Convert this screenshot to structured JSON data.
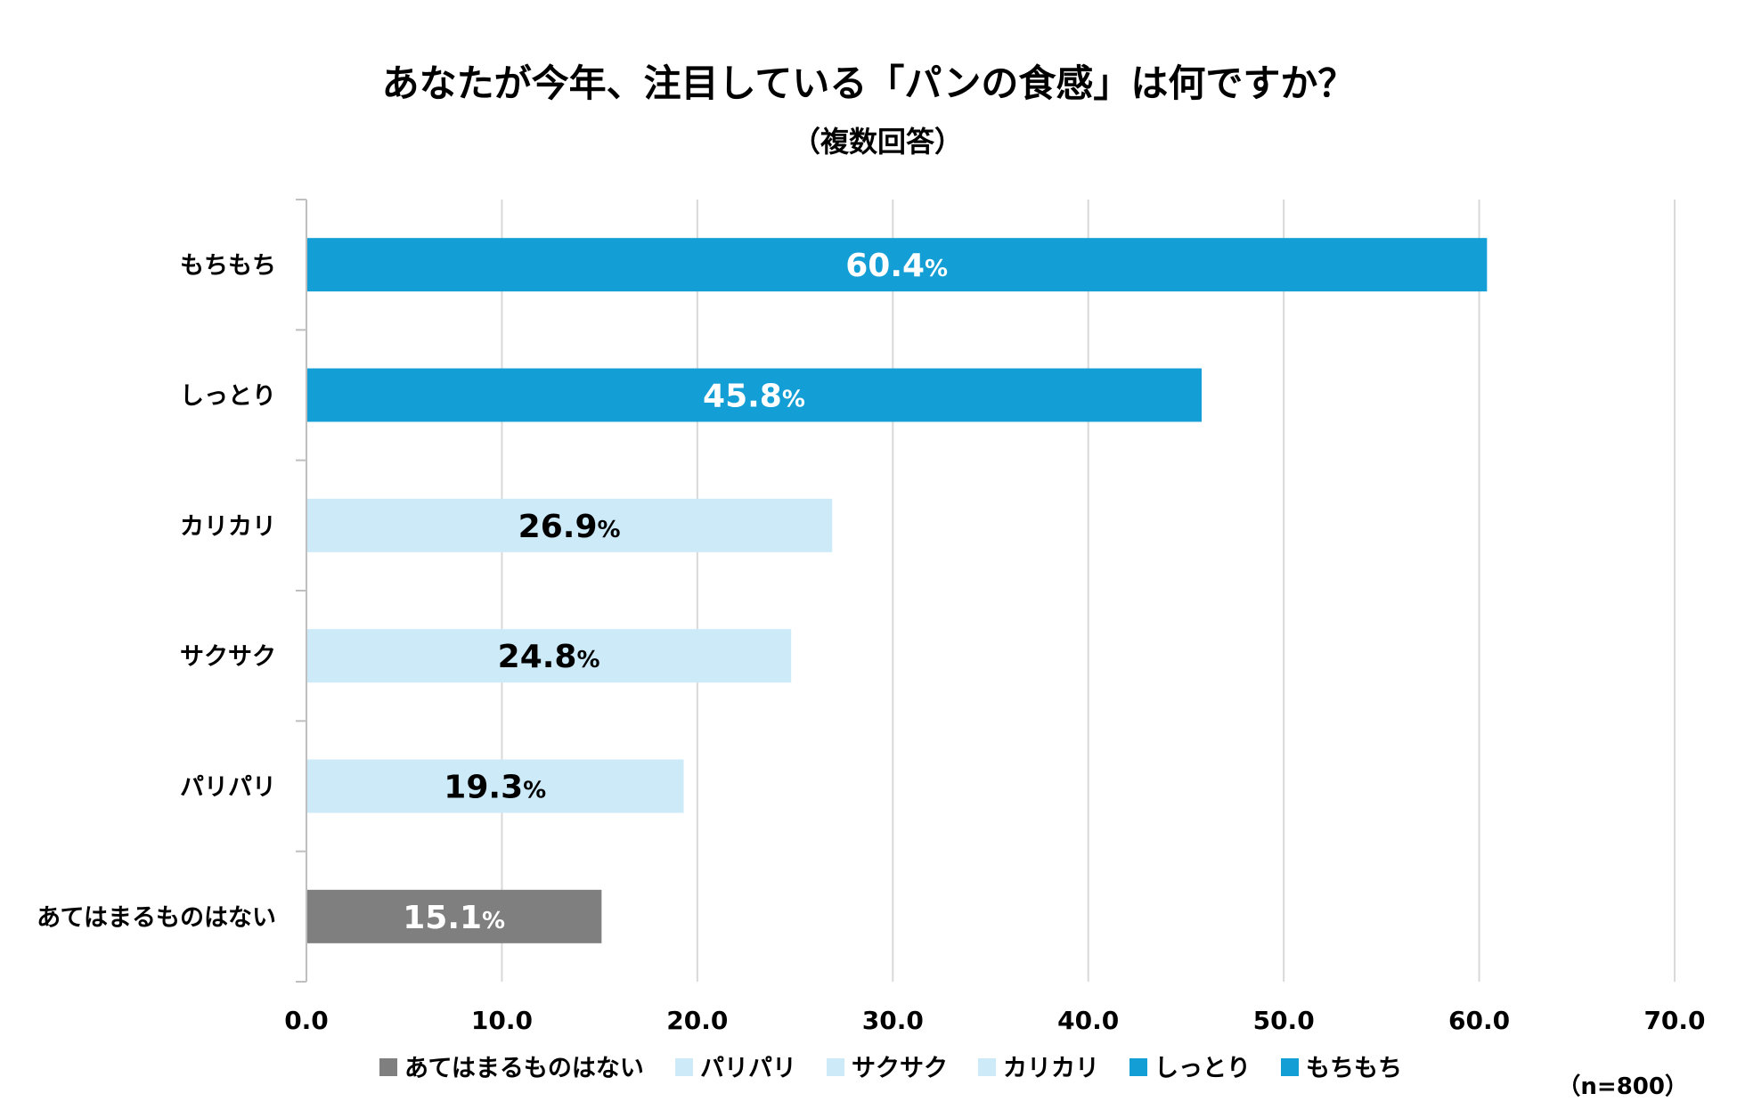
{
  "chart_data": {
    "type": "bar",
    "orientation": "horizontal",
    "title": "あなたが今年、注目している「パンの食感」は何ですか？",
    "subtitle": "（複数回答）",
    "categories": [
      "もちもち",
      "しっとり",
      "カリカリ",
      "サクサク",
      "パリパリ",
      "あてはまるものはない"
    ],
    "values": [
      60.4,
      45.8,
      26.9,
      24.8,
      19.3,
      15.1
    ],
    "value_labels": [
      "60.4",
      "45.8",
      "26.9",
      "24.8",
      "19.3",
      "15.1"
    ],
    "value_suffix": "%",
    "bar_colors": [
      "#139ed5",
      "#139ed5",
      "#cdeaf9",
      "#cdeaf9",
      "#cdeaf9",
      "#7f7f7f"
    ],
    "label_colors": [
      "#ffffff",
      "#ffffff",
      "#000000",
      "#000000",
      "#000000",
      "#ffffff"
    ],
    "xlim": [
      0,
      70
    ],
    "x_ticks": [
      "0.0",
      "10.0",
      "20.0",
      "30.0",
      "40.0",
      "50.0",
      "60.0",
      "70.0"
    ],
    "grid": true,
    "legend": {
      "placement": "bottom",
      "entries": [
        {
          "name": "あてはまるものはない",
          "color": "#7f7f7f"
        },
        {
          "name": "パリパリ",
          "color": "#cdeaf9"
        },
        {
          "name": "サクサク",
          "color": "#cdeaf9"
        },
        {
          "name": "カリカリ",
          "color": "#cdeaf9"
        },
        {
          "name": "しっとり",
          "color": "#139ed5"
        },
        {
          "name": "もちもち",
          "color": "#139ed5"
        }
      ]
    },
    "sample_note": "（n=800）"
  }
}
